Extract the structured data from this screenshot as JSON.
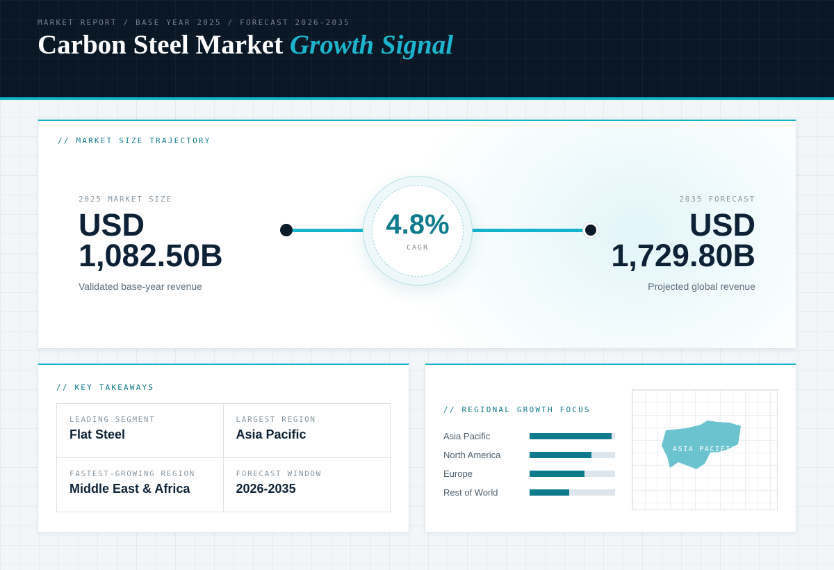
{
  "header": {
    "eyebrow": "MARKET REPORT / BASE YEAR 2025 / FORECAST 2026-2035",
    "title_main": "Carbon Steel Market",
    "title_accent": "Growth Signal"
  },
  "trajectory": {
    "label": "// MARKET SIZE TRAJECTORY",
    "start": {
      "kicker": "2025 MARKET SIZE",
      "currency": "USD",
      "value": "1,082.50B",
      "sub": "Validated base-year revenue"
    },
    "cagr": {
      "value": "4.8%",
      "label": "CAGR"
    },
    "end": {
      "kicker": "2035 FORECAST",
      "currency": "USD",
      "value": "1,729.80B",
      "sub": "Projected global revenue"
    }
  },
  "takeaways": {
    "label": "// KEY TAKEAWAYS",
    "items": [
      {
        "key": "LEADING SEGMENT",
        "value": "Flat Steel"
      },
      {
        "key": "LARGEST REGION",
        "value": "Asia Pacific"
      },
      {
        "key": "FASTEST-GROWING REGION",
        "value": "Middle East & Africa"
      },
      {
        "key": "FORECAST WINDOW",
        "value": "2026-2035"
      }
    ]
  },
  "regional": {
    "label": "// REGIONAL GROWTH FOCUS",
    "bars": [
      {
        "name": "Asia Pacific",
        "share": 0.96
      },
      {
        "name": "North America",
        "share": 0.72
      },
      {
        "name": "Europe",
        "share": 0.64
      },
      {
        "name": "Rest of World",
        "share": 0.46
      }
    ],
    "map_tag": "ASIA PACIFIC",
    "map_icon": "asia-pacific-map-icon"
  },
  "colors": {
    "accent": "#16b4cc",
    "accent_dark": "#0e7b8c",
    "header_bg": "#0a1826",
    "ink": "#0d2236"
  }
}
